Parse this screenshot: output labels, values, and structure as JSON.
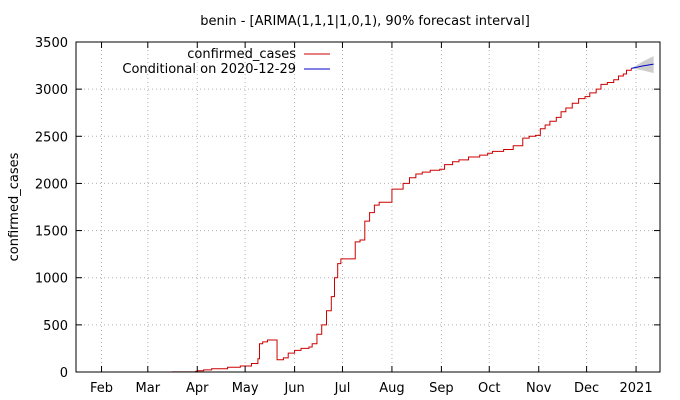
{
  "chart_data": {
    "type": "line",
    "title": "benin -  [ARIMA(1,1,1|1,0,1), 90% forecast interval]",
    "xlabel": "",
    "ylabel": "confirmed_cases",
    "xlim": [
      "2021-01-16",
      "2021-01-16"
    ],
    "ylim": [
      0,
      3500
    ],
    "grid": true,
    "legend_position": "top-right",
    "y_ticks": [
      0,
      500,
      1000,
      1500,
      2000,
      2500,
      3000,
      3500
    ],
    "x_ticks": [
      {
        "label": "Feb",
        "date": "2020-02-01"
      },
      {
        "label": "Mar",
        "date": "2020-03-01"
      },
      {
        "label": "Apr",
        "date": "2020-04-01"
      },
      {
        "label": "May",
        "date": "2020-05-01"
      },
      {
        "label": "Jun",
        "date": "2020-06-01"
      },
      {
        "label": "Jul",
        "date": "2020-07-01"
      },
      {
        "label": "Aug",
        "date": "2020-08-01"
      },
      {
        "label": "Sep",
        "date": "2020-09-01"
      },
      {
        "label": "Oct",
        "date": "2020-10-01"
      },
      {
        "label": "Nov",
        "date": "2020-11-01"
      },
      {
        "label": "Dec",
        "date": "2020-12-01"
      },
      {
        "label": "2021",
        "date": "2021-01-01"
      }
    ],
    "series": [
      {
        "name": "confirmed_cases",
        "color": "#cc0000",
        "points": [
          [
            "2020-03-16",
            1
          ],
          [
            "2020-03-31",
            6
          ],
          [
            "2020-04-01",
            13
          ],
          [
            "2020-04-05",
            22
          ],
          [
            "2020-04-10",
            35
          ],
          [
            "2020-04-20",
            50
          ],
          [
            "2020-04-28",
            64
          ],
          [
            "2020-05-05",
            90
          ],
          [
            "2020-05-09",
            140
          ],
          [
            "2020-05-10",
            300
          ],
          [
            "2020-05-12",
            320
          ],
          [
            "2020-05-15",
            339
          ],
          [
            "2020-05-20",
            340
          ],
          [
            "2020-05-21",
            130
          ],
          [
            "2020-05-25",
            150
          ],
          [
            "2020-05-28",
            200
          ],
          [
            "2020-06-01",
            230
          ],
          [
            "2020-06-05",
            250
          ],
          [
            "2020-06-10",
            265
          ],
          [
            "2020-06-12",
            300
          ],
          [
            "2020-06-15",
            400
          ],
          [
            "2020-06-18",
            500
          ],
          [
            "2020-06-21",
            650
          ],
          [
            "2020-06-24",
            800
          ],
          [
            "2020-06-26",
            1000
          ],
          [
            "2020-06-28",
            1150
          ],
          [
            "2020-06-30",
            1200
          ],
          [
            "2020-07-07",
            1200
          ],
          [
            "2020-07-09",
            1380
          ],
          [
            "2020-07-12",
            1400
          ],
          [
            "2020-07-15",
            1600
          ],
          [
            "2020-07-18",
            1690
          ],
          [
            "2020-07-21",
            1770
          ],
          [
            "2020-07-24",
            1800
          ],
          [
            "2020-07-28",
            1800
          ],
          [
            "2020-08-01",
            1940
          ],
          [
            "2020-08-05",
            1940
          ],
          [
            "2020-08-08",
            2000
          ],
          [
            "2020-08-12",
            2060
          ],
          [
            "2020-08-16",
            2100
          ],
          [
            "2020-08-20",
            2120
          ],
          [
            "2020-08-25",
            2140
          ],
          [
            "2020-08-31",
            2150
          ],
          [
            "2020-09-03",
            2200
          ],
          [
            "2020-09-08",
            2230
          ],
          [
            "2020-09-12",
            2250
          ],
          [
            "2020-09-18",
            2280
          ],
          [
            "2020-09-25",
            2300
          ],
          [
            "2020-09-30",
            2320
          ],
          [
            "2020-10-03",
            2340
          ],
          [
            "2020-10-10",
            2360
          ],
          [
            "2020-10-14",
            2360
          ],
          [
            "2020-10-16",
            2400
          ],
          [
            "2020-10-20",
            2400
          ],
          [
            "2020-10-22",
            2480
          ],
          [
            "2020-10-26",
            2500
          ],
          [
            "2020-10-30",
            2510
          ],
          [
            "2020-11-02",
            2580
          ],
          [
            "2020-11-05",
            2620
          ],
          [
            "2020-11-08",
            2660
          ],
          [
            "2020-11-12",
            2700
          ],
          [
            "2020-11-15",
            2760
          ],
          [
            "2020-11-18",
            2800
          ],
          [
            "2020-11-22",
            2850
          ],
          [
            "2020-11-26",
            2900
          ],
          [
            "2020-11-30",
            2920
          ],
          [
            "2020-12-03",
            2960
          ],
          [
            "2020-12-07",
            3000
          ],
          [
            "2020-12-10",
            3050
          ],
          [
            "2020-12-14",
            3070
          ],
          [
            "2020-12-18",
            3100
          ],
          [
            "2020-12-21",
            3140
          ],
          [
            "2020-12-24",
            3160
          ],
          [
            "2020-12-26",
            3200
          ],
          [
            "2020-12-29",
            3220
          ]
        ]
      },
      {
        "name": "Conditional on 2020-12-29",
        "color": "#0000cc",
        "points": [
          [
            "2020-12-29",
            3220
          ],
          [
            "2021-01-05",
            3245
          ],
          [
            "2021-01-12",
            3265
          ]
        ]
      }
    ],
    "forecast_interval": {
      "color": "#c8c8c8",
      "upper": [
        [
          "2020-12-29",
          3220
        ],
        [
          "2021-01-05",
          3290
        ],
        [
          "2021-01-12",
          3350
        ]
      ],
      "lower": [
        [
          "2020-12-29",
          3220
        ],
        [
          "2021-01-05",
          3200
        ],
        [
          "2021-01-12",
          3170
        ]
      ]
    }
  }
}
